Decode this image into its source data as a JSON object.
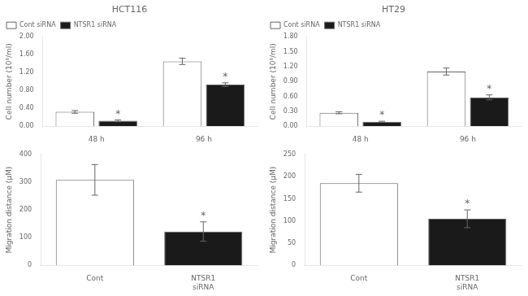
{
  "chart_data": [
    {
      "type": "bar",
      "title": "HCT116",
      "categories": [
        "48 h",
        "96 h"
      ],
      "series": [
        {
          "name": "Cont siRNA",
          "color": "#ffffff",
          "values": [
            0.32,
            1.45
          ],
          "errors": [
            0.03,
            0.07
          ]
        },
        {
          "name": "NTSR1 siRNA",
          "color": "#1a1a1a",
          "values": [
            0.12,
            0.93
          ],
          "errors": [
            0.02,
            0.04
          ]
        }
      ],
      "ylabel": "Cell number (10⁶/ml)",
      "ylim": [
        0,
        2.0
      ],
      "yticks": [
        {
          "value": 0.0,
          "label": "0.00"
        },
        {
          "value": 0.4,
          "label": "0.40"
        },
        {
          "value": 0.8,
          "label": "0.80"
        },
        {
          "value": 1.2,
          "label": "1.20"
        },
        {
          "value": 1.6,
          "label": "1.60"
        },
        {
          "value": 2.0,
          "label": "2.00"
        }
      ],
      "annotations": [
        {
          "text": "*",
          "category": "48 h",
          "series": "NTSR1 siRNA"
        },
        {
          "text": "*",
          "category": "96 h",
          "series": "NTSR1 siRNA"
        }
      ],
      "legend": "upper left",
      "grid": false
    },
    {
      "type": "bar",
      "title": "HT29",
      "categories": [
        "48 h",
        "96 h"
      ],
      "series": [
        {
          "name": "Cont siRNA",
          "color": "#ffffff",
          "values": [
            0.27,
            1.1
          ],
          "errors": [
            0.02,
            0.07
          ]
        },
        {
          "name": "NTSR1 siRNA",
          "color": "#1a1a1a",
          "values": [
            0.09,
            0.58
          ],
          "errors": [
            0.01,
            0.05
          ]
        }
      ],
      "ylabel": "Cell number (10⁶/ml)",
      "ylim": [
        0,
        1.8
      ],
      "yticks": [
        {
          "value": 0.0,
          "label": "0.00"
        },
        {
          "value": 0.3,
          "label": "0.30"
        },
        {
          "value": 0.6,
          "label": "0.60"
        },
        {
          "value": 0.9,
          "label": "0.90"
        },
        {
          "value": 1.2,
          "label": "1.20"
        },
        {
          "value": 1.5,
          "label": "1.50"
        },
        {
          "value": 1.8,
          "label": "1.80"
        }
      ],
      "annotations": [
        {
          "text": "*",
          "category": "48 h",
          "series": "NTSR1 siRNA"
        },
        {
          "text": "*",
          "category": "96 h",
          "series": "NTSR1 siRNA"
        }
      ],
      "legend": "upper left",
      "grid": false
    },
    {
      "type": "bar",
      "categories": [
        "Cont",
        "NTSR1\nsiRNA"
      ],
      "values": [
        308,
        122
      ],
      "errors": [
        55,
        35
      ],
      "colors": [
        "#ffffff",
        "#1a1a1a"
      ],
      "ylabel": "Migration distance (μM)",
      "ylim": [
        0,
        400
      ],
      "yticks": [
        0,
        100,
        200,
        300,
        400
      ],
      "annotations": [
        {
          "text": "*",
          "category": "NTSR1\nsiRNA"
        }
      ],
      "grid": false
    },
    {
      "type": "bar",
      "categories": [
        "Cont",
        "NTSR1\nsiRNA"
      ],
      "values": [
        185,
        105
      ],
      "errors": [
        20,
        20
      ],
      "colors": [
        "#ffffff",
        "#1a1a1a"
      ],
      "ylabel": "Migration distance (μM)",
      "ylim": [
        0,
        250
      ],
      "yticks": [
        0,
        50,
        100,
        150,
        200,
        250
      ],
      "annotations": [
        {
          "text": "*",
          "category": "NTSR1\nsiRNA"
        }
      ],
      "grid": false
    }
  ]
}
